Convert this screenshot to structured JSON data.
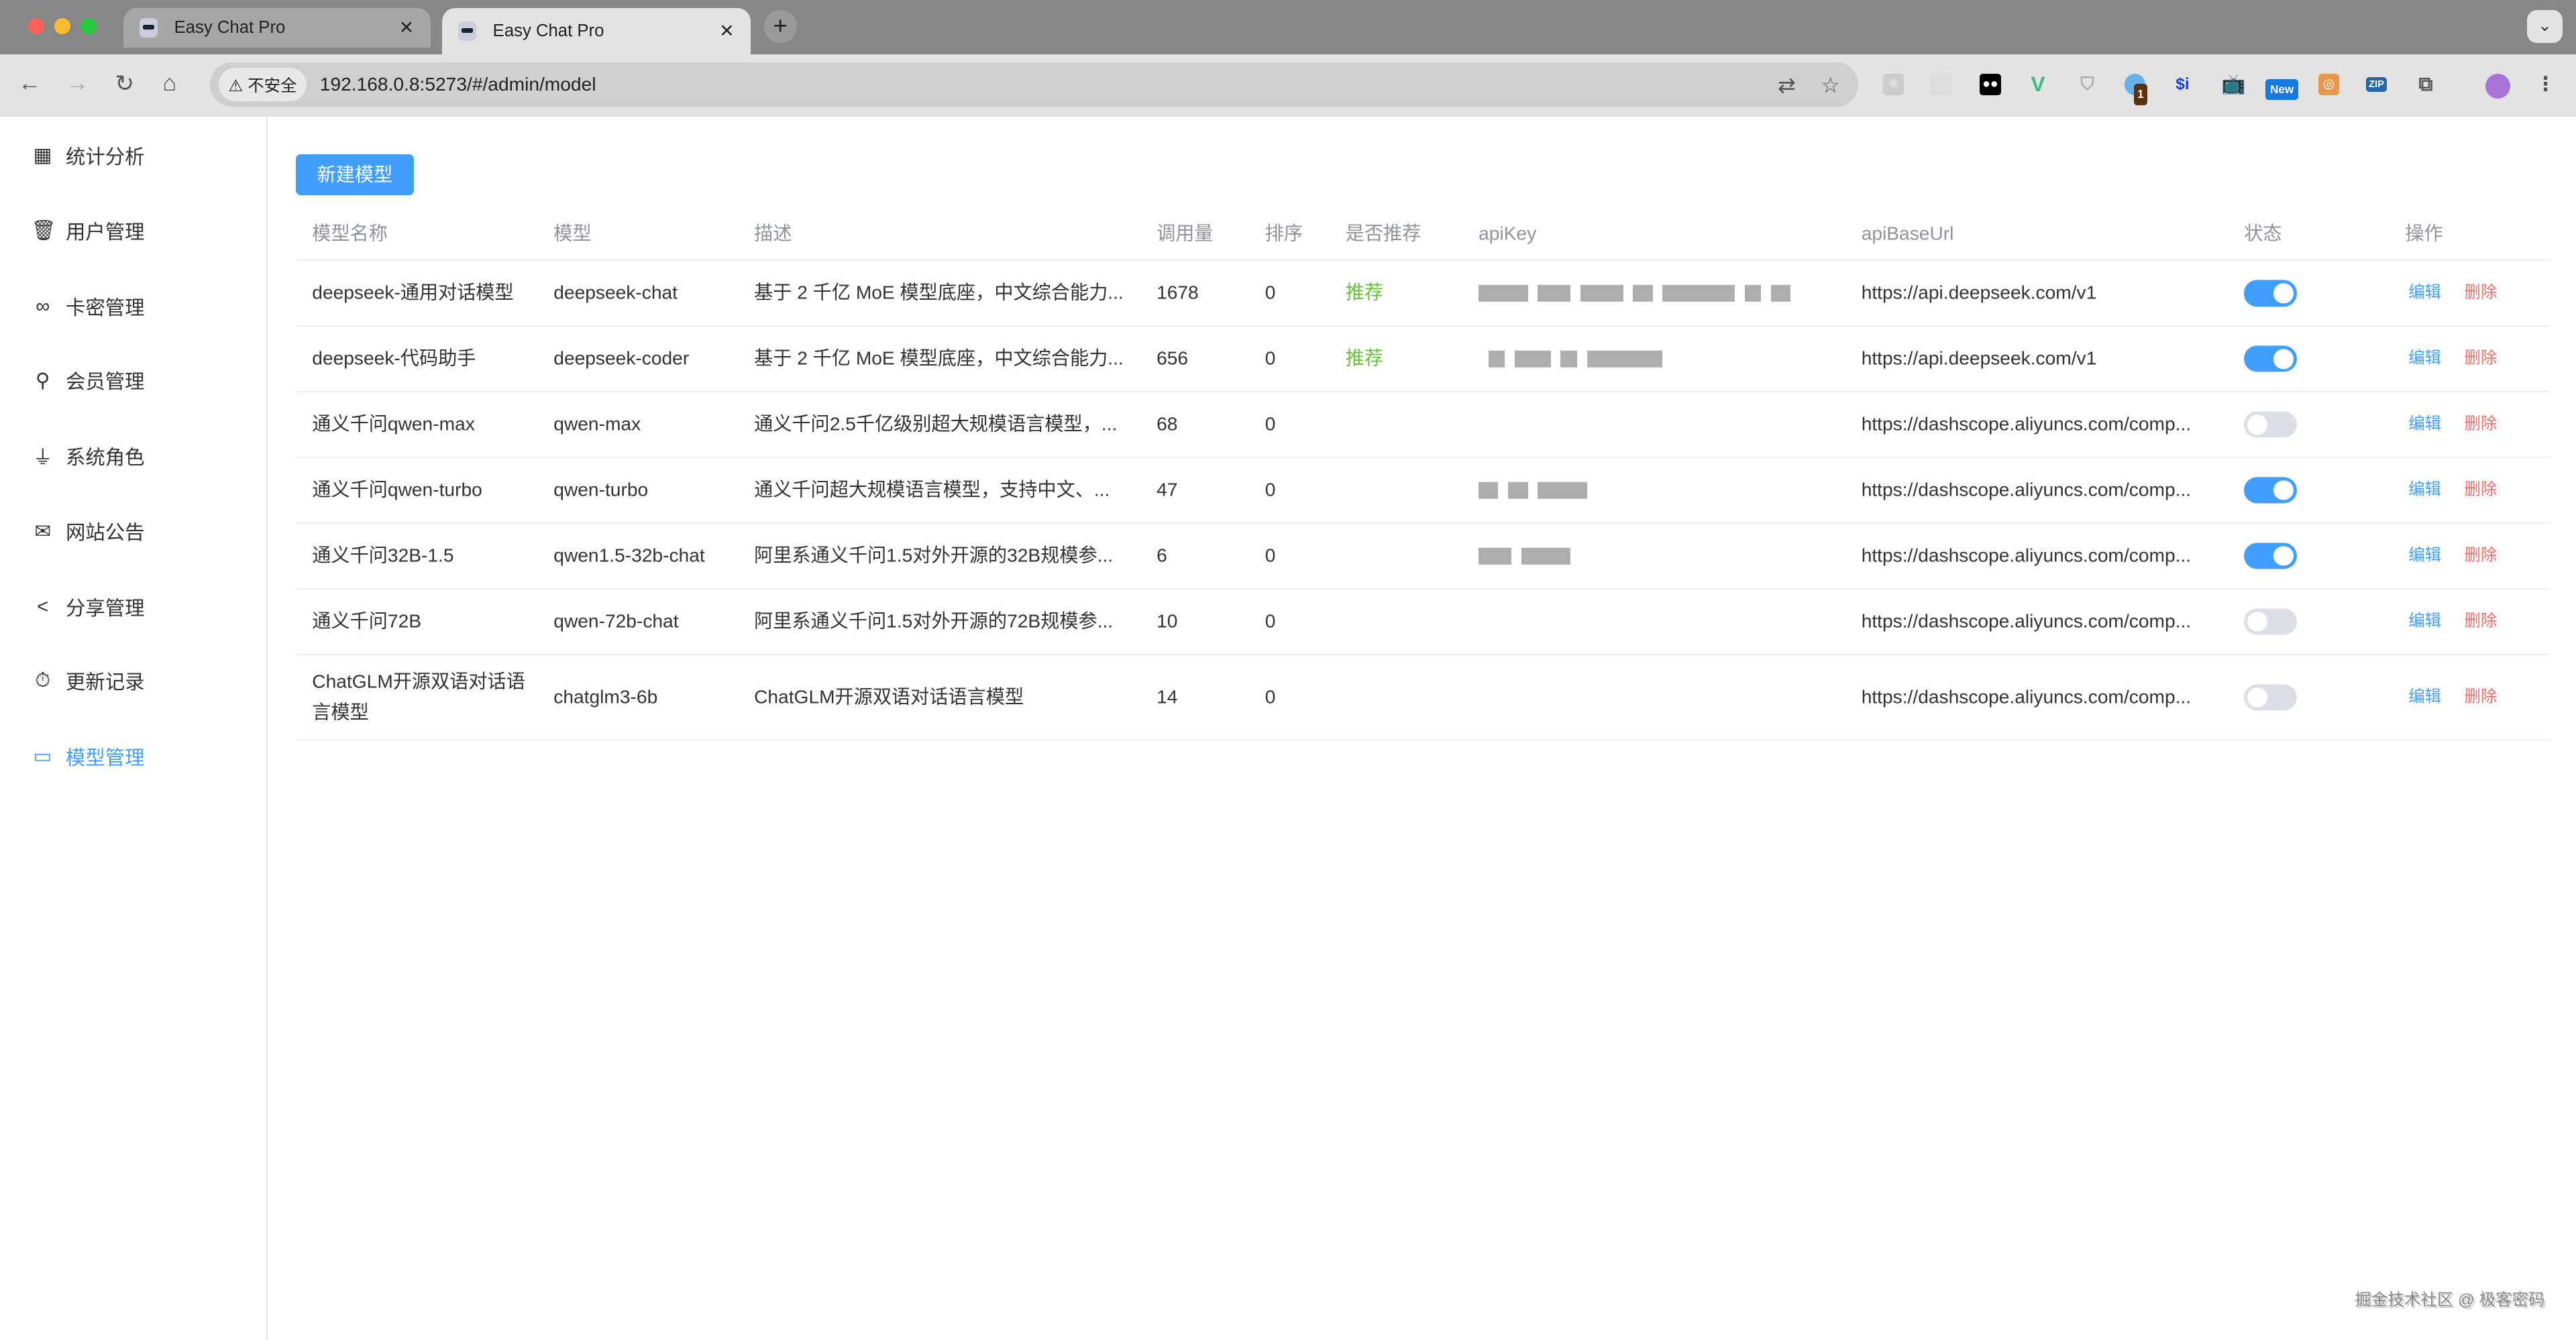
{
  "browser": {
    "tabs": [
      {
        "title": "Easy Chat Pro",
        "active": false
      },
      {
        "title": "Easy Chat Pro",
        "active": true
      }
    ],
    "security_label": "不安全",
    "url": "192.168.0.8:5273/#/admin/model",
    "extension_badges": {
      "count": "1",
      "new": "New",
      "zip": "ZIP",
      "si": "$i"
    }
  },
  "sidebar": {
    "items": [
      {
        "label": "统计分析",
        "icon": "grid-icon"
      },
      {
        "label": "用户管理",
        "icon": "cup-icon"
      },
      {
        "label": "卡密管理",
        "icon": "link-icon"
      },
      {
        "label": "会员管理",
        "icon": "lollipop-icon"
      },
      {
        "label": "系统角色",
        "icon": "lamp-icon"
      },
      {
        "label": "网站公告",
        "icon": "mail-icon"
      },
      {
        "label": "分享管理",
        "icon": "share-icon"
      },
      {
        "label": "更新记录",
        "icon": "stopwatch-icon"
      },
      {
        "label": "模型管理",
        "icon": "monitor-icon",
        "active": true
      }
    ]
  },
  "main": {
    "new_button": "新建模型",
    "columns": [
      "模型名称",
      "模型",
      "描述",
      "调用量",
      "排序",
      "是否推荐",
      "apiKey",
      "apiBaseUrl",
      "状态",
      "操作"
    ],
    "edit_label": "编辑",
    "delete_label": "删除",
    "rows": [
      {
        "name": "deepseek-通用对话模型",
        "model": "deepseek-chat",
        "desc": "基于 2 千亿 MoE 模型底座，中文综合能力...",
        "calls": "1678",
        "sort": "0",
        "recommend": "推荐",
        "baseUrl": "https://api.deepseek.com/v1",
        "enabled": true
      },
      {
        "name": "deepseek-代码助手",
        "model": "deepseek-coder",
        "desc": "基于 2 千亿 MoE 模型底座，中文综合能力...",
        "calls": "656",
        "sort": "0",
        "recommend": "推荐",
        "baseUrl": "https://api.deepseek.com/v1",
        "enabled": true
      },
      {
        "name": "通义千问qwen-max",
        "model": "qwen-max",
        "desc": "通义千问2.5千亿级别超大规模语言模型，...",
        "calls": "68",
        "sort": "0",
        "recommend": "",
        "baseUrl": "https://dashscope.aliyuncs.com/comp...",
        "enabled": false
      },
      {
        "name": "通义千问qwen-turbo",
        "model": "qwen-turbo",
        "desc": "通义千问超大规模语言模型，支持中文、...",
        "calls": "47",
        "sort": "0",
        "recommend": "",
        "baseUrl": "https://dashscope.aliyuncs.com/comp...",
        "enabled": true
      },
      {
        "name": "通义千问32B-1.5",
        "model": "qwen1.5-32b-chat",
        "desc": "阿里系通义千问1.5对外开源的32B规模参...",
        "calls": "6",
        "sort": "0",
        "recommend": "",
        "baseUrl": "https://dashscope.aliyuncs.com/comp...",
        "enabled": true
      },
      {
        "name": "通义千问72B",
        "model": "qwen-72b-chat",
        "desc": "阿里系通义千问1.5对外开源的72B规模参...",
        "calls": "10",
        "sort": "0",
        "recommend": "",
        "baseUrl": "https://dashscope.aliyuncs.com/comp...",
        "enabled": false
      },
      {
        "name": "ChatGLM开源双语对话语言模型",
        "model": "chatglm3-6b",
        "desc": "ChatGLM开源双语对话语言模型",
        "calls": "14",
        "sort": "0",
        "recommend": "",
        "baseUrl": "https://dashscope.aliyuncs.com/comp...",
        "enabled": false
      }
    ]
  },
  "watermark": "掘金技术社区 @ 极客密码"
}
